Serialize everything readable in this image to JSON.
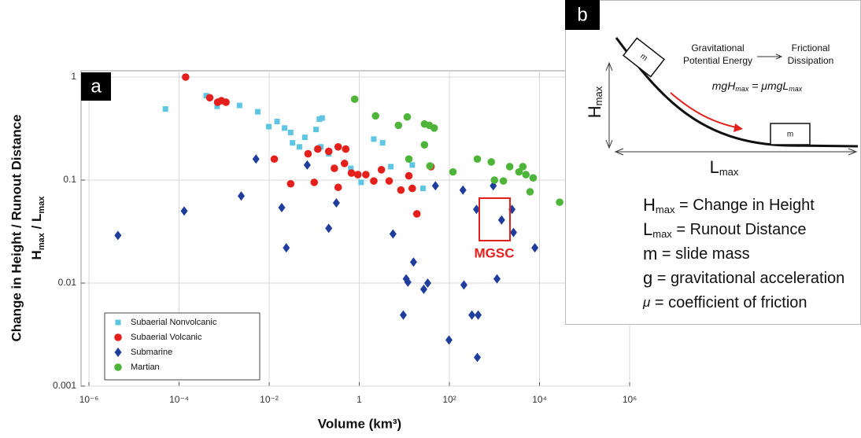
{
  "chart_data": {
    "type": "scatter",
    "panel_label": "a",
    "x_label": "Volume (km³)",
    "y_label": "Change in Height / Runout Distance",
    "y_label_ratio": [
      "H",
      "max",
      " / L",
      "max"
    ],
    "annotation": "MGSC",
    "xscale": "log",
    "yscale": "log",
    "grid": true,
    "legend": "lower left",
    "xlim": [
      1e-06,
      1000000
    ],
    "ylim": [
      0.001,
      1
    ],
    "xticks": [
      {
        "value": 1e-06,
        "label": "10⁻⁶"
      },
      {
        "value": 0.0001,
        "label": "10⁻⁴"
      },
      {
        "value": 0.01,
        "label": "10⁻²"
      },
      1,
      {
        "value": 100,
        "label": "10²"
      },
      {
        "value": 10000,
        "label": "10⁴"
      },
      {
        "value": 1000000,
        "label": "10⁶"
      }
    ],
    "yticks": [
      0.001,
      0.01,
      0.1,
      1
    ],
    "series": [
      {
        "name": "Subaerial Nonvolcanic",
        "color": "#5ec6e2",
        "marker": "square",
        "x": [
          5e-05,
          0.0004,
          0.0007,
          0.0022,
          0.0056,
          0.0098,
          0.015,
          0.022,
          0.03,
          0.033,
          0.047,
          0.062,
          0.11,
          0.13,
          0.15,
          0.14,
          0.21,
          0.65,
          1.1,
          2.1,
          3.3,
          5,
          15,
          26
        ],
        "values": [
          0.49,
          0.66,
          0.52,
          0.53,
          0.46,
          0.33,
          0.37,
          0.32,
          0.29,
          0.23,
          0.21,
          0.26,
          0.31,
          0.39,
          0.4,
          0.21,
          0.18,
          0.13,
          0.095,
          0.25,
          0.23,
          0.135,
          0.14,
          0.083
        ]
      },
      {
        "name": "Subaerial Volcanic",
        "color": "#e5201c",
        "marker": "circle",
        "x": [
          0.00014,
          0.00048,
          0.00072,
          0.00087,
          0.0011,
          0.013,
          0.03,
          0.073,
          0.1,
          0.12,
          0.21,
          0.28,
          0.34,
          0.34,
          0.47,
          0.5,
          0.67,
          0.93,
          1.4,
          2.1,
          3.1,
          4.6,
          8.4,
          12.6,
          15,
          19,
          39
        ],
        "values": [
          1,
          0.63,
          0.57,
          0.59,
          0.57,
          0.16,
          0.092,
          0.18,
          0.095,
          0.2,
          0.19,
          0.13,
          0.21,
          0.085,
          0.145,
          0.2,
          0.117,
          0.113,
          0.113,
          0.098,
          0.126,
          0.098,
          0.08,
          0.11,
          0.083,
          0.047,
          0.135
        ]
      },
      {
        "name": "Submarine",
        "color": "#1e3d9c",
        "marker": "diamond",
        "x": [
          4.4e-06,
          0.00013,
          0.0024,
          0.0051,
          0.019,
          0.024,
          0.07,
          0.21,
          0.31,
          5.6,
          9.5,
          11,
          12,
          16,
          27,
          33,
          49,
          98,
          200,
          210,
          316,
          400,
          417,
          435,
          940,
          1140,
          1440,
          2450,
          2650,
          7900
        ],
        "values": [
          0.029,
          0.05,
          0.07,
          0.16,
          0.054,
          0.022,
          0.14,
          0.034,
          0.06,
          0.03,
          0.0049,
          0.011,
          0.0102,
          0.016,
          0.0087,
          0.01,
          0.088,
          0.0028,
          0.08,
          0.0096,
          0.0049,
          0.052,
          0.0019,
          0.0049,
          0.088,
          0.011,
          0.041,
          0.052,
          0.031,
          0.022
        ]
      },
      {
        "name": "Martian",
        "color": "#4fb53a",
        "marker": "circle",
        "x": [
          0.79,
          2.3,
          7.4,
          11.6,
          12.6,
          28,
          28,
          36,
          37,
          46,
          120,
          417,
          850,
          1000,
          1580,
          2180,
          3500,
          4270,
          5000,
          6170,
          7240,
          28000
        ],
        "values": [
          0.61,
          0.42,
          0.34,
          0.41,
          0.16,
          0.35,
          0.22,
          0.34,
          0.137,
          0.32,
          0.12,
          0.16,
          0.15,
          0.1,
          0.098,
          0.135,
          0.12,
          0.135,
          0.113,
          0.077,
          0.105,
          0.061
        ]
      }
    ]
  },
  "diagram": {
    "panel_label": "b",
    "energy_from": [
      "Gravitational",
      "Potential Energy"
    ],
    "energy_to": [
      "Frictional",
      "Dissipation"
    ],
    "equation": [
      "mgH",
      "max",
      " = μmgL",
      "max"
    ],
    "mass_label": "m",
    "height_symbol": [
      "H",
      "max"
    ],
    "length_symbol": [
      "L",
      "max"
    ],
    "definitions": [
      {
        "symbol": "H",
        "sub": "max",
        "text": " = Change in Height"
      },
      {
        "symbol": "L",
        "sub": "max",
        "text": " = Runout Distance"
      },
      {
        "symbol": "m",
        "text": " = slide mass"
      },
      {
        "symbol": "g",
        "text": " = gravitational acceleration"
      },
      {
        "symbol": "μ",
        "text": " = coefficient of friction"
      }
    ]
  }
}
